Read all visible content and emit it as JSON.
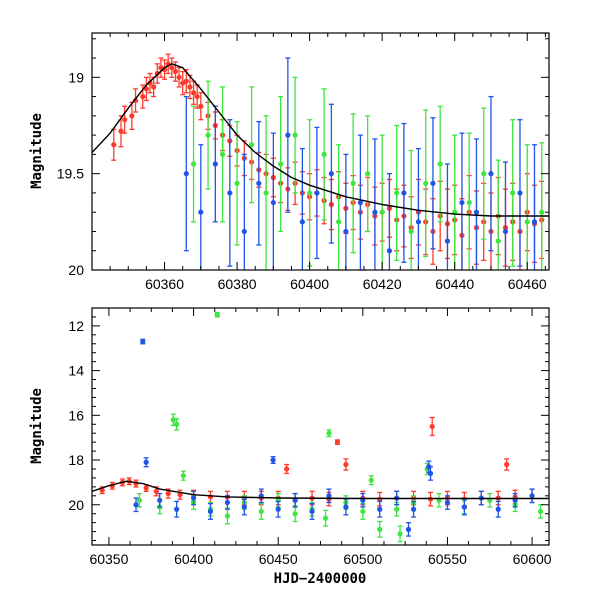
{
  "colors": {
    "red": "#ff3a2a",
    "green": "#3fe63f",
    "blue": "#1f55e6",
    "model": "#000000"
  },
  "chart_data": [
    {
      "type": "scatter",
      "title": "",
      "xlabel": "",
      "ylabel": "Magnitude",
      "xlim": [
        60340,
        60466
      ],
      "ylim": [
        20.0,
        18.77
      ],
      "y_inverted": true,
      "x_ticks": [
        60360,
        60380,
        60400,
        60420,
        60440,
        60460
      ],
      "y_ticks": [
        19,
        19.5,
        20
      ],
      "x_tick_labels": [
        "60360",
        "60380",
        "60400",
        "60420",
        "60440",
        "60460"
      ],
      "y_tick_labels": [
        "19",
        "19.5",
        "20"
      ],
      "grid": false,
      "legend": "none",
      "model_curve": {
        "x": [
          60340,
          60345,
          60350,
          60355,
          60360,
          60362,
          60365,
          60370,
          60375,
          60380,
          60385,
          60390,
          60395,
          60400,
          60410,
          60420,
          60430,
          60440,
          60450,
          60460,
          60466
        ],
        "y": [
          19.39,
          19.29,
          19.16,
          19.04,
          18.95,
          18.93,
          18.95,
          19.06,
          19.18,
          19.3,
          19.39,
          19.46,
          19.52,
          19.56,
          19.62,
          19.66,
          19.69,
          19.71,
          19.72,
          19.72,
          19.72
        ]
      },
      "series": [
        {
          "color": "red",
          "x": [
            60346,
            60348,
            60349,
            60351,
            60352,
            60354,
            60355,
            60356,
            60357,
            60358,
            60359,
            60360,
            60361,
            60362,
            60363,
            60364,
            60365,
            60366,
            60367,
            60368,
            60369,
            60370,
            60372,
            60374,
            60376,
            60378,
            60380,
            60382,
            60384,
            60386,
            60388,
            60390,
            60392,
            60394,
            60396,
            60398,
            60400,
            60402,
            60404,
            60406,
            60408,
            60410,
            60412,
            60414,
            60416,
            60418,
            60420,
            60422,
            60424,
            60426,
            60428,
            60430,
            60432,
            60434,
            60436,
            60438,
            60440,
            60442,
            60444,
            60446,
            60448,
            60450,
            60452,
            60454,
            60456,
            60458,
            60460,
            60462,
            60464
          ],
          "y": [
            19.35,
            19.28,
            19.22,
            19.2,
            19.12,
            19.1,
            19.06,
            19.03,
            19.05,
            18.98,
            18.95,
            18.96,
            18.93,
            18.95,
            18.97,
            19.0,
            19.03,
            19.02,
            19.05,
            19.08,
            19.1,
            19.15,
            19.2,
            19.25,
            19.3,
            19.33,
            19.38,
            19.42,
            19.44,
            19.48,
            19.5,
            19.52,
            19.55,
            19.58,
            19.55,
            19.6,
            19.62,
            19.6,
            19.64,
            19.66,
            19.62,
            19.68,
            19.65,
            19.7,
            19.66,
            19.72,
            19.7,
            19.68,
            19.74,
            19.72,
            19.78,
            19.7,
            19.75,
            19.8,
            19.72,
            19.76,
            19.74,
            19.82,
            19.7,
            19.78,
            19.75,
            19.8,
            19.72,
            19.78,
            19.75,
            19.8,
            19.7,
            19.76,
            19.74
          ],
          "err": [
            0.08,
            0.08,
            0.07,
            0.07,
            0.06,
            0.06,
            0.06,
            0.05,
            0.05,
            0.05,
            0.05,
            0.05,
            0.05,
            0.05,
            0.05,
            0.05,
            0.06,
            0.06,
            0.06,
            0.06,
            0.06,
            0.07,
            0.07,
            0.07,
            0.08,
            0.08,
            0.08,
            0.09,
            0.09,
            0.09,
            0.1,
            0.1,
            0.1,
            0.11,
            0.11,
            0.11,
            0.12,
            0.12,
            0.12,
            0.13,
            0.13,
            0.13,
            0.14,
            0.14,
            0.14,
            0.15,
            0.15,
            0.15,
            0.16,
            0.16,
            0.16,
            0.17,
            0.17,
            0.17,
            0.18,
            0.18,
            0.18,
            0.19,
            0.19,
            0.19,
            0.2,
            0.2,
            0.2,
            0.2,
            0.2,
            0.2,
            0.2,
            0.2,
            0.2
          ]
        },
        {
          "color": "green",
          "x": [
            60368,
            60372,
            60376,
            60380,
            60384,
            60388,
            60392,
            60396,
            60400,
            60404,
            60408,
            60412,
            60416,
            60420,
            60424,
            60428,
            60432,
            60436,
            60440,
            60444,
            60448,
            60452,
            60456,
            60460,
            60464
          ],
          "y": [
            19.45,
            19.3,
            19.4,
            19.55,
            19.35,
            19.6,
            19.45,
            19.3,
            19.6,
            19.4,
            19.75,
            19.55,
            19.5,
            19.7,
            19.6,
            19.8,
            19.55,
            19.45,
            19.7,
            19.65,
            19.5,
            19.85,
            19.6,
            19.75,
            19.7
          ],
          "err": [
            0.3,
            0.28,
            0.35,
            0.32,
            0.3,
            0.4,
            0.35,
            0.3,
            0.38,
            0.34,
            0.4,
            0.36,
            0.3,
            0.4,
            0.35,
            0.42,
            0.38,
            0.3,
            0.4,
            0.36,
            0.34,
            0.42,
            0.38,
            0.4,
            0.36
          ]
        },
        {
          "color": "blue",
          "x": [
            60366,
            60370,
            60374,
            60378,
            60382,
            60386,
            60390,
            60394,
            60398,
            60402,
            60406,
            60410,
            60414,
            60418,
            60422,
            60426,
            60430,
            60434,
            60438,
            60442,
            60446,
            60450,
            60454,
            60458,
            60462
          ],
          "y": [
            19.5,
            19.7,
            19.45,
            19.6,
            19.8,
            19.55,
            19.65,
            19.3,
            19.75,
            19.6,
            19.5,
            19.8,
            19.65,
            19.7,
            19.9,
            19.6,
            19.75,
            19.55,
            19.85,
            19.65,
            19.7,
            19.5,
            19.8,
            19.6,
            19.75
          ],
          "err": [
            0.4,
            0.35,
            0.3,
            0.38,
            0.4,
            0.32,
            0.36,
            0.4,
            0.38,
            0.34,
            0.36,
            0.4,
            0.35,
            0.38,
            0.4,
            0.36,
            0.38,
            0.34,
            0.4,
            0.36,
            0.38,
            0.4,
            0.36,
            0.38,
            0.4
          ]
        }
      ]
    },
    {
      "type": "scatter",
      "title": "",
      "xlabel": "HJD−2400000",
      "ylabel": "Magnitude",
      "xlim": [
        60340,
        60610
      ],
      "ylim": [
        21.8,
        11.2
      ],
      "y_inverted": true,
      "x_ticks": [
        60350,
        60400,
        60450,
        60500,
        60550,
        60600
      ],
      "y_ticks": [
        12,
        14,
        16,
        18,
        20
      ],
      "x_tick_labels": [
        "60350",
        "60400",
        "60450",
        "60500",
        "60550",
        "60600"
      ],
      "y_tick_labels": [
        "12",
        "14",
        "16",
        "18",
        "20"
      ],
      "grid": false,
      "legend": "none",
      "model_curve": {
        "x": [
          60340,
          60350,
          60360,
          60370,
          60380,
          60400,
          60420,
          60450,
          60500,
          60550,
          60610
        ],
        "y": [
          19.4,
          19.15,
          18.95,
          19.05,
          19.3,
          19.55,
          19.65,
          19.7,
          19.72,
          19.72,
          19.72
        ]
      },
      "series": [
        {
          "color": "red",
          "x": [
            60346,
            60352,
            60358,
            60362,
            60366,
            60372,
            60378,
            60385,
            60392,
            60400,
            60410,
            60420,
            60430,
            60440,
            60450,
            60455,
            60460,
            60470,
            60480,
            60485,
            60490,
            60500,
            60510,
            60520,
            60530,
            60540,
            60541,
            60550,
            60560,
            60570,
            60580,
            60585,
            60590,
            60600
          ],
          "y": [
            19.35,
            19.15,
            19.0,
            18.95,
            19.05,
            19.25,
            19.4,
            19.5,
            19.55,
            19.6,
            19.65,
            19.65,
            19.7,
            19.7,
            19.7,
            18.4,
            19.8,
            19.7,
            19.75,
            17.2,
            18.2,
            19.7,
            19.75,
            19.7,
            19.7,
            19.75,
            16.5,
            19.7,
            19.75,
            19.7,
            19.7,
            18.2,
            19.65,
            19.6
          ],
          "err": [
            0.15,
            0.15,
            0.15,
            0.15,
            0.15,
            0.15,
            0.2,
            0.2,
            0.2,
            0.25,
            0.25,
            0.25,
            0.3,
            0.3,
            0.3,
            0.2,
            0.3,
            0.3,
            0.3,
            0.1,
            0.25,
            0.3,
            0.3,
            0.3,
            0.3,
            0.3,
            0.4,
            0.3,
            0.3,
            0.3,
            0.3,
            0.25,
            0.3,
            0.3
          ]
        },
        {
          "color": "green",
          "x": [
            60368,
            60380,
            60388,
            60390,
            60394,
            60400,
            60410,
            60414,
            60420,
            60430,
            60440,
            60450,
            60460,
            60470,
            60478,
            60480,
            60490,
            60500,
            60505,
            60510,
            60520,
            60522,
            60530,
            60538,
            60545,
            60560,
            60575,
            60590,
            60605
          ],
          "y": [
            19.8,
            20.1,
            16.2,
            16.4,
            18.7,
            19.9,
            20.2,
            11.5,
            20.5,
            19.9,
            20.3,
            19.8,
            20.4,
            20.2,
            20.6,
            16.8,
            19.9,
            20.3,
            18.9,
            21.1,
            20.2,
            21.3,
            19.9,
            18.4,
            19.8,
            20.1,
            19.8,
            20.0,
            20.3
          ],
          "err": [
            0.3,
            0.3,
            0.25,
            0.25,
            0.2,
            0.3,
            0.3,
            0.1,
            0.35,
            0.3,
            0.35,
            0.3,
            0.35,
            0.3,
            0.35,
            0.15,
            0.3,
            0.35,
            0.2,
            0.35,
            0.3,
            0.35,
            0.3,
            0.25,
            0.3,
            0.3,
            0.3,
            0.3,
            0.3
          ]
        },
        {
          "color": "blue",
          "x": [
            60366,
            60370,
            60372,
            60380,
            60390,
            60400,
            60410,
            60420,
            60430,
            60440,
            60447,
            60450,
            60460,
            60470,
            60480,
            60490,
            60500,
            60510,
            60520,
            60527,
            60530,
            60539,
            60540,
            60550,
            60560,
            60570,
            60580,
            60590,
            60600
          ],
          "y": [
            20.0,
            12.7,
            18.1,
            19.8,
            20.2,
            19.7,
            20.3,
            19.9,
            20.1,
            19.6,
            18.0,
            20.2,
            19.8,
            20.3,
            19.6,
            20.1,
            19.8,
            20.2,
            19.7,
            21.1,
            20.2,
            18.3,
            18.6,
            19.9,
            20.1,
            19.7,
            20.2,
            19.8,
            19.6
          ],
          "err": [
            0.3,
            0.1,
            0.2,
            0.3,
            0.35,
            0.3,
            0.35,
            0.3,
            0.35,
            0.3,
            0.15,
            0.35,
            0.3,
            0.35,
            0.3,
            0.35,
            0.3,
            0.35,
            0.3,
            0.3,
            0.35,
            0.25,
            0.3,
            0.3,
            0.35,
            0.3,
            0.35,
            0.3,
            0.3
          ]
        }
      ]
    }
  ]
}
